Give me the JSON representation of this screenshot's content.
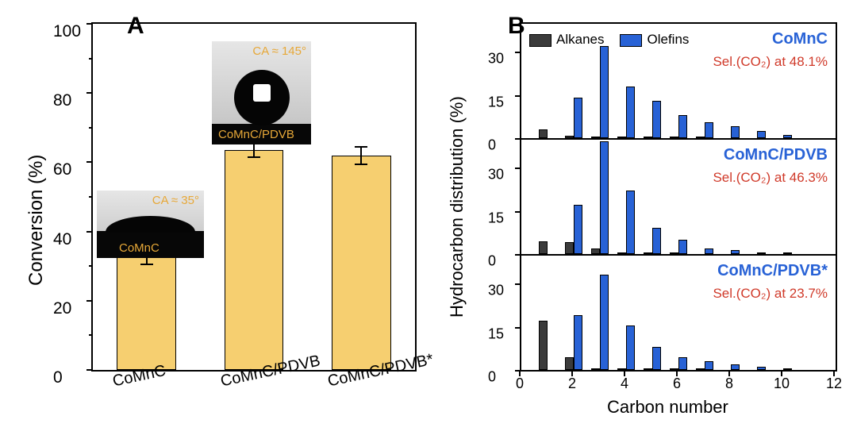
{
  "panels": {
    "A": {
      "label": "A",
      "ylabel": "Conversion (%)",
      "ylim": [
        0,
        100
      ],
      "ytick_step": 20,
      "bar_color": "#f6cf70",
      "bar_border": "#000000",
      "background_color": "#ffffff",
      "categories": [
        "CoMnC",
        "CoMnC/PDVB",
        "CoMnC/PDVB*"
      ],
      "values": [
        32.5,
        63.5,
        62.0
      ],
      "errors": [
        2.0,
        2.0,
        2.5
      ],
      "bar_width": 0.55,
      "label_fontsize": 20,
      "tick_fontsize": 21,
      "insets": [
        {
          "attached_to": "CoMnC",
          "kind": "flat-drop",
          "ca_text": "CA ≈ 35°",
          "caption": "CoMnC",
          "sky_color": "#d0d0d0",
          "drop_color": "#050505",
          "text_color": "#e7a838"
        },
        {
          "attached_to": "CoMnC/PDVB",
          "kind": "round-drop",
          "ca_text": "CA ≈ 145°",
          "caption": "CoMnC/PDVB",
          "sky_color": "#d0d0d0",
          "drop_color": "#050505",
          "text_color": "#e7a838"
        }
      ]
    },
    "B": {
      "label": "B",
      "ylabel": "Hydrocarbon distribution (%)",
      "xlabel": "Carbon number",
      "xlim": [
        0,
        12
      ],
      "xtick_step": 2,
      "bar_half_width": 0.33,
      "legend": [
        {
          "name": "Alkanes",
          "color": "#3b3b3b"
        },
        {
          "name": "Olefins",
          "color": "#2862d6"
        }
      ],
      "title_color": "#2862d6",
      "sel_color": "#d03a2a",
      "background_color": "#ffffff",
      "sub_ylim": [
        0,
        40
      ],
      "sub_yticks": [
        0,
        15,
        30
      ],
      "panels": [
        {
          "title": "CoMnC",
          "sel_text": "Sel.(CO₂) at 48.1%",
          "carbon": [
            1,
            2,
            3,
            4,
            5,
            6,
            7,
            8,
            9,
            10
          ],
          "alkanes": [
            3.0,
            0.7,
            0.4,
            0.3,
            0.2,
            0.1,
            0.1,
            0.0,
            0.0,
            0.0
          ],
          "olefins": [
            0.0,
            14.0,
            32.0,
            18.0,
            13.0,
            8.0,
            5.5,
            4.0,
            2.5,
            1.2
          ]
        },
        {
          "title": "CoMnC/PDVB",
          "sel_text": "Sel.(CO₂) at 46.3%",
          "carbon": [
            1,
            2,
            3,
            4,
            5,
            6,
            7,
            8,
            9,
            10
          ],
          "alkanes": [
            4.5,
            4.0,
            1.8,
            0.4,
            0.2,
            0.1,
            0.0,
            0.0,
            0.0,
            0.0
          ],
          "olefins": [
            0.0,
            17.0,
            39.0,
            22.0,
            9.0,
            5.0,
            2.0,
            1.5,
            0.5,
            0.2
          ]
        },
        {
          "title": "CoMnC/PDVB*",
          "sel_text": "Sel.(CO₂) at 23.7%",
          "carbon": [
            1,
            2,
            3,
            4,
            5,
            6,
            7,
            8,
            9,
            10
          ],
          "alkanes": [
            17.0,
            4.5,
            0.5,
            0.3,
            0.2,
            0.1,
            0.1,
            0.0,
            0.0,
            0.0
          ],
          "olefins": [
            0.0,
            19.0,
            33.0,
            15.5,
            8.0,
            4.5,
            3.0,
            2.0,
            1.2,
            0.6
          ]
        }
      ]
    }
  }
}
